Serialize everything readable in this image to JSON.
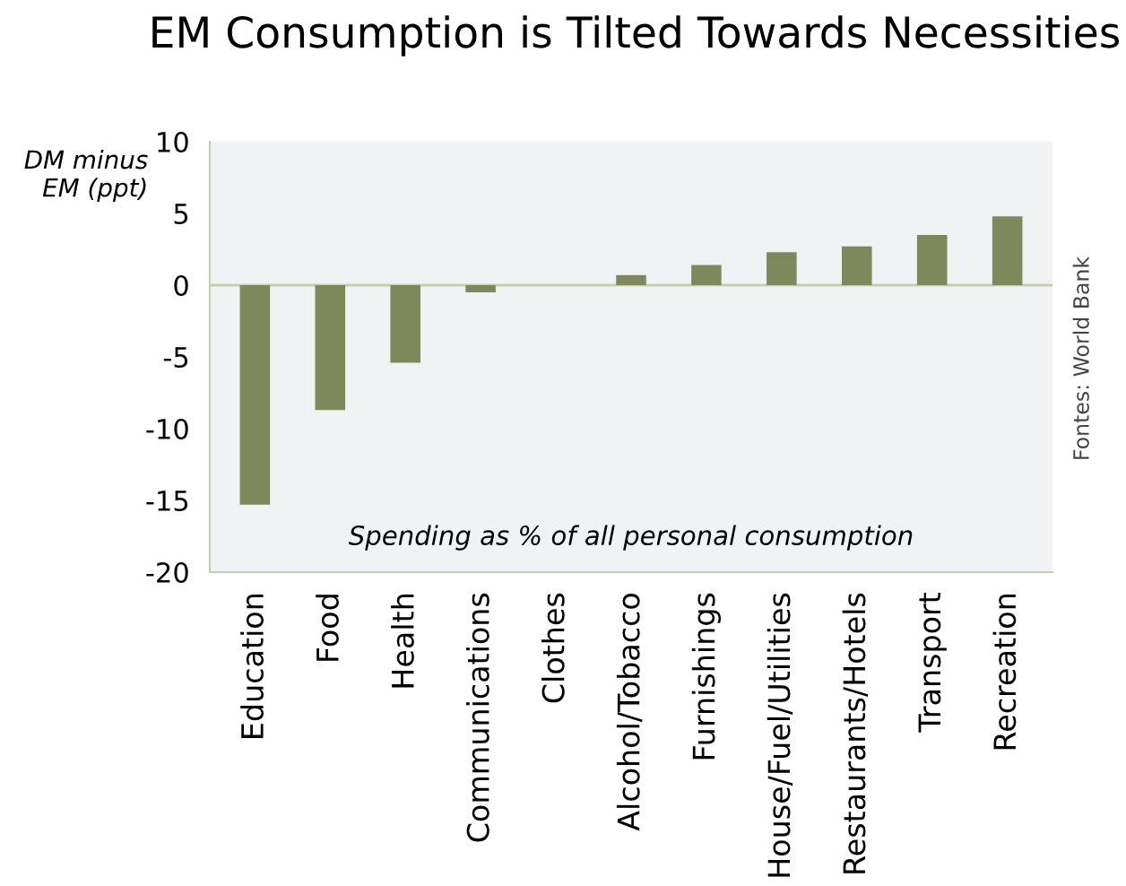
{
  "chart_data": {
    "type": "bar",
    "title": "EM Consumption is Tilted Towards Necessities",
    "ylabel": "DM minus\nEM (ppt)",
    "categories": [
      "Education",
      "Food",
      "Health",
      "Communications",
      "Clothes",
      "Alcohol/Tobacco",
      "Furnishings",
      "House/Fuel/Utilities",
      "Restaurants/Hotels",
      "Transport",
      "Recreation"
    ],
    "values": [
      -15.3,
      -8.7,
      -5.4,
      -0.5,
      0,
      0.7,
      1.4,
      2.3,
      2.7,
      3.5,
      4.8
    ],
    "color": "#7f885a",
    "ylim": [
      -20,
      10
    ],
    "yticks": [
      -20,
      -15,
      -10,
      -5,
      0,
      5,
      10
    ],
    "grid": false,
    "ref_lines": [
      {
        "axis": "y",
        "value": 0,
        "color": "#c5cfae"
      }
    ],
    "annotations": [
      "Spending as % of all personal consumption",
      "Fontes: World Bank"
    ]
  }
}
